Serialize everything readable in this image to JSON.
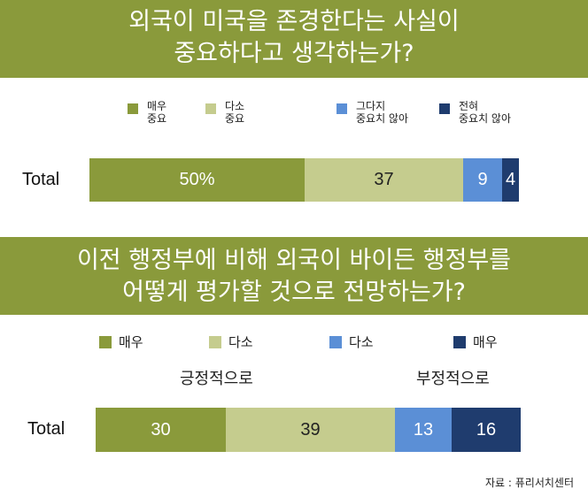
{
  "chart_data": [
    {
      "type": "bar",
      "orientation": "horizontal-stacked",
      "title_lines": [
        "외국이 미국을 존경한다는 사실이",
        "중요하다고 생각하는가?"
      ],
      "categories": [
        "Total"
      ],
      "series": [
        {
          "name": "매우\n중요",
          "values": [
            50
          ],
          "label": "50%",
          "color": "#8a9a3b"
        },
        {
          "name": "다소\n중요",
          "values": [
            37
          ],
          "label": "37",
          "color": "#c5cc8e"
        },
        {
          "name": "그다지\n중요치 않아",
          "values": [
            9
          ],
          "label": "9",
          "color": "#5b8fd6"
        },
        {
          "name": "전혀\n중요치 않아",
          "values": [
            4
          ],
          "label": "4",
          "color": "#1f3c6e"
        }
      ],
      "legend": {
        "items": [
          {
            "line1": "매우",
            "line2": "중요"
          },
          {
            "line1": "다소",
            "line2": "중요"
          },
          {
            "line1": "그다지",
            "line2": "중요치 않아"
          },
          {
            "line1": "전혀",
            "line2": "중요치 않아"
          }
        ]
      },
      "xlim": [
        0,
        100
      ]
    },
    {
      "type": "bar",
      "orientation": "horizontal-stacked",
      "title_lines": [
        "이전 행정부에 비해 외국이 바이든 행정부를",
        "어떻게 평가할 것으로 전망하는가?"
      ],
      "categories": [
        "Total"
      ],
      "group_labels": {
        "positive": "긍정적으로",
        "negative": "부정적으로"
      },
      "series": [
        {
          "name": "매우",
          "values": [
            30
          ],
          "label": "30",
          "color": "#8a9a3b"
        },
        {
          "name": "다소",
          "values": [
            39
          ],
          "label": "39",
          "color": "#c5cc8e"
        },
        {
          "name": "다소",
          "values": [
            13
          ],
          "label": "13",
          "color": "#5b8fd6"
        },
        {
          "name": "매우",
          "values": [
            16
          ],
          "label": "16",
          "color": "#1f3c6e"
        }
      ],
      "legend": {
        "items": [
          "매우",
          "다소",
          "다소",
          "매우"
        ]
      },
      "xlim": [
        0,
        98
      ]
    }
  ],
  "source": "자료 : 퓨리서치센터"
}
